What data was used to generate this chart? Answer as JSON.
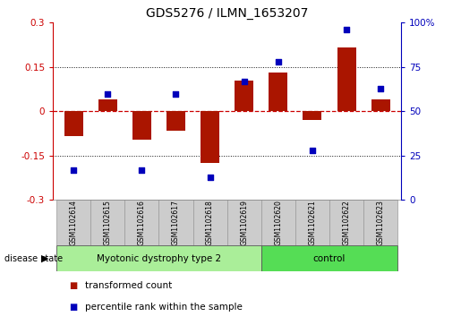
{
  "title": "GDS5276 / ILMN_1653207",
  "samples": [
    "GSM1102614",
    "GSM1102615",
    "GSM1102616",
    "GSM1102617",
    "GSM1102618",
    "GSM1102619",
    "GSM1102620",
    "GSM1102621",
    "GSM1102622",
    "GSM1102623"
  ],
  "transformed_count": [
    -0.085,
    0.04,
    -0.095,
    -0.065,
    -0.175,
    0.105,
    0.13,
    -0.03,
    0.215,
    0.04
  ],
  "percentile_rank": [
    17,
    60,
    17,
    60,
    13,
    67,
    78,
    28,
    96,
    63
  ],
  "ylim_left": [
    -0.3,
    0.3
  ],
  "ylim_right": [
    0,
    100
  ],
  "yticks_left": [
    -0.3,
    -0.15,
    0.0,
    0.15,
    0.3
  ],
  "yticks_right": [
    0,
    25,
    50,
    75,
    100
  ],
  "bar_color": "#aa1500",
  "dot_color": "#0000bb",
  "zero_line_color": "#cc0000",
  "dotted_line_color": "#111111",
  "groups": [
    {
      "label": "Myotonic dystrophy type 2",
      "start": 0,
      "end": 6,
      "color": "#aaee99"
    },
    {
      "label": "control",
      "start": 6,
      "end": 10,
      "color": "#55dd55"
    }
  ],
  "disease_state_label": "disease state",
  "legend": [
    {
      "label": "transformed count",
      "color": "#aa1500"
    },
    {
      "label": "percentile rank within the sample",
      "color": "#0000bb"
    }
  ],
  "plot_bg_color": "#ffffff",
  "label_box_color": "#cccccc",
  "bar_width": 0.55,
  "left_ylabel_color": "#cc0000",
  "right_ylabel_color": "#0000bb"
}
